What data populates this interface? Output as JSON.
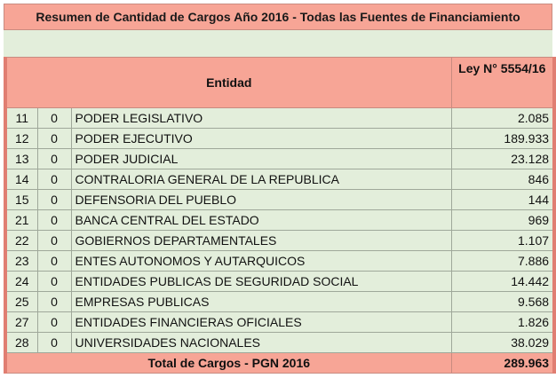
{
  "title": "Resumen de Cantidad de Cargos Año 2016 - Todas las Fuentes de Financiamiento",
  "header": {
    "entidad": "Entidad",
    "ley": "Ley N° 5554/16"
  },
  "rows": [
    {
      "code": "11",
      "sub": "0",
      "name": "PODER LEGISLATIVO",
      "value": "2.085"
    },
    {
      "code": "12",
      "sub": "0",
      "name": "PODER EJECUTIVO",
      "value": "189.933"
    },
    {
      "code": "13",
      "sub": "0",
      "name": "PODER JUDICIAL",
      "value": "23.128"
    },
    {
      "code": "14",
      "sub": "0",
      "name": "CONTRALORIA GENERAL DE LA REPUBLICA",
      "value": "846"
    },
    {
      "code": "15",
      "sub": "0",
      "name": "DEFENSORIA DEL PUEBLO",
      "value": "144"
    },
    {
      "code": "21",
      "sub": "0",
      "name": "BANCA CENTRAL DEL ESTADO",
      "value": "969"
    },
    {
      "code": "22",
      "sub": "0",
      "name": "GOBIERNOS DEPARTAMENTALES",
      "value": "1.107"
    },
    {
      "code": "23",
      "sub": "0",
      "name": "ENTES AUTONOMOS Y AUTARQUICOS",
      "value": "7.886"
    },
    {
      "code": "24",
      "sub": "0",
      "name": "ENTIDADES PUBLICAS DE SEGURIDAD SOCIAL",
      "value": "14.442"
    },
    {
      "code": "25",
      "sub": "0",
      "name": "EMPRESAS PUBLICAS",
      "value": "9.568"
    },
    {
      "code": "27",
      "sub": "0",
      "name": "ENTIDADES FINANCIERAS OFICIALES",
      "value": "1.826"
    },
    {
      "code": "28",
      "sub": "0",
      "name": "UNIVERSIDADES NACIONALES",
      "value": "38.029"
    }
  ],
  "total": {
    "label": "Total de Cargos - PGN 2016",
    "value": "289.963"
  }
}
